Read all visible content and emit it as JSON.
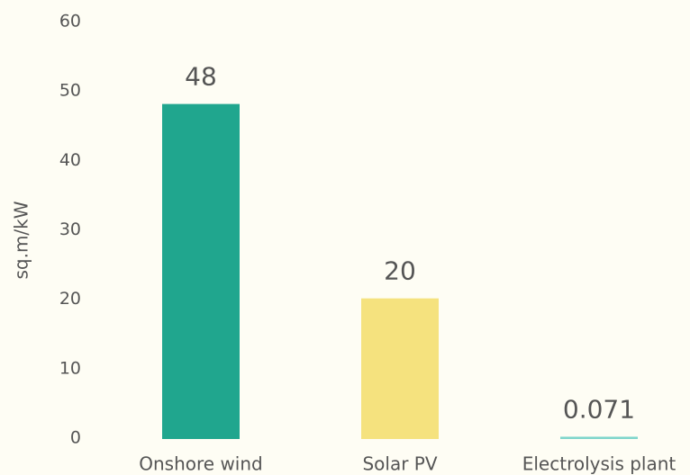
{
  "chart_data": {
    "type": "bar",
    "y_label": "sq.m/kW",
    "categories": [
      "Onshore wind",
      "Solar PV",
      "Electrolysis plant"
    ],
    "values": [
      48,
      20,
      0.071
    ],
    "colors": [
      "#20a68e",
      "#f5e27e",
      "#7fd6cc"
    ],
    "ylim": [
      0,
      60
    ],
    "yticks": [
      0,
      10,
      20,
      30,
      40,
      50,
      60
    ],
    "grid": false
  }
}
